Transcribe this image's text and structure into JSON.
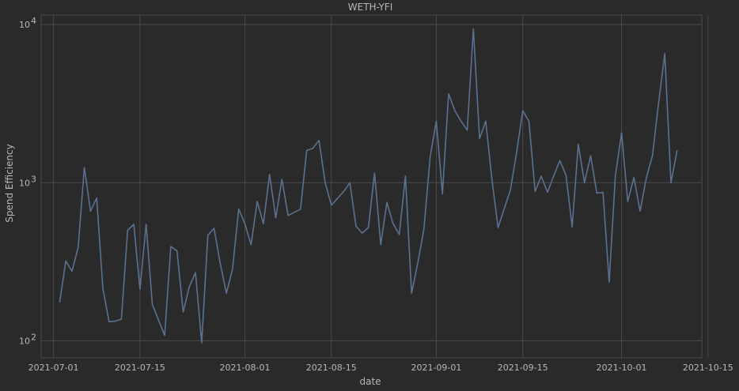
{
  "chart_data": {
    "type": "line",
    "title": "WETH-YFI",
    "xlabel": "date",
    "ylabel": "Spend Efficiency",
    "y_scale": "log",
    "ylim": [
      78,
      11500
    ],
    "xlim": [
      "2021-06-29",
      "2021-10-14"
    ],
    "grid": true,
    "line_color": "#5a7190",
    "background_color": "#2a2a2a",
    "grid_color": "#4a4a4a",
    "x_ticks": [
      "2021-07-01",
      "2021-07-15",
      "2021-08-01",
      "2021-08-15",
      "2021-09-01",
      "2021-09-15",
      "2021-10-01",
      "2021-10-15"
    ],
    "y_ticks": [
      {
        "value": 100,
        "base": "10",
        "exp": "2"
      },
      {
        "value": 1000,
        "base": "10",
        "exp": "3"
      },
      {
        "value": 10000,
        "base": "10",
        "exp": "4"
      }
    ],
    "series": [
      {
        "x": [
          "2021-07-02",
          "2021-07-03",
          "2021-07-04",
          "2021-07-05",
          "2021-07-06",
          "2021-07-07",
          "2021-07-08",
          "2021-07-09",
          "2021-07-10",
          "2021-07-11",
          "2021-07-12",
          "2021-07-13",
          "2021-07-14",
          "2021-07-15",
          "2021-07-16",
          "2021-07-17",
          "2021-07-19",
          "2021-07-20",
          "2021-07-21",
          "2021-07-22",
          "2021-07-23",
          "2021-07-24",
          "2021-07-25",
          "2021-07-26",
          "2021-07-27",
          "2021-07-28",
          "2021-07-29",
          "2021-07-30",
          "2021-07-31",
          "2021-08-01",
          "2021-08-02",
          "2021-08-03",
          "2021-08-04",
          "2021-08-05",
          "2021-08-06",
          "2021-08-07",
          "2021-08-08",
          "2021-08-10",
          "2021-08-11",
          "2021-08-12",
          "2021-08-13",
          "2021-08-14",
          "2021-08-15",
          "2021-08-17",
          "2021-08-18",
          "2021-08-19",
          "2021-08-20",
          "2021-08-21",
          "2021-08-22",
          "2021-08-23",
          "2021-08-24",
          "2021-08-25",
          "2021-08-26",
          "2021-08-27",
          "2021-08-28",
          "2021-08-29",
          "2021-08-30",
          "2021-08-31",
          "2021-09-01",
          "2021-09-02",
          "2021-09-03",
          "2021-09-04",
          "2021-09-05",
          "2021-09-06",
          "2021-09-07",
          "2021-09-08",
          "2021-09-09",
          "2021-09-10",
          "2021-09-11",
          "2021-09-13",
          "2021-09-14",
          "2021-09-15",
          "2021-09-16",
          "2021-09-17",
          "2021-09-18",
          "2021-09-19",
          "2021-09-20",
          "2021-09-21",
          "2021-09-22",
          "2021-09-23",
          "2021-09-24",
          "2021-09-25",
          "2021-09-26",
          "2021-09-27",
          "2021-09-28",
          "2021-09-29",
          "2021-09-30",
          "2021-10-01",
          "2021-10-02",
          "2021-10-03",
          "2021-10-04",
          "2021-10-05",
          "2021-10-06",
          "2021-10-07",
          "2021-10-08",
          "2021-10-09",
          "2021-10-10"
        ],
        "y": [
          175,
          320,
          275,
          390,
          1250,
          660,
          800,
          215,
          132,
          133,
          137,
          500,
          545,
          212,
          545,
          170,
          108,
          395,
          370,
          152,
          220,
          270,
          97,
          465,
          515,
          310,
          200,
          285,
          680,
          550,
          405,
          760,
          550,
          1130,
          600,
          1050,
          620,
          680,
          1600,
          1650,
          1850,
          1000,
          720,
          880,
          1000,
          530,
          480,
          520,
          1150,
          405,
          750,
          550,
          470,
          1100,
          200,
          310,
          510,
          1450,
          2450,
          850,
          3650,
          2850,
          2450,
          2150,
          9400,
          1900,
          2450,
          1050,
          520,
          900,
          1550,
          2850,
          2450,
          880,
          1100,
          870,
          1100,
          1380,
          1120,
          525,
          1750,
          1000,
          1480,
          860,
          870,
          235,
          1100,
          2070,
          760,
          1080,
          660,
          1070,
          1480,
          3200,
          6550,
          1000,
          1600
        ]
      }
    ]
  }
}
